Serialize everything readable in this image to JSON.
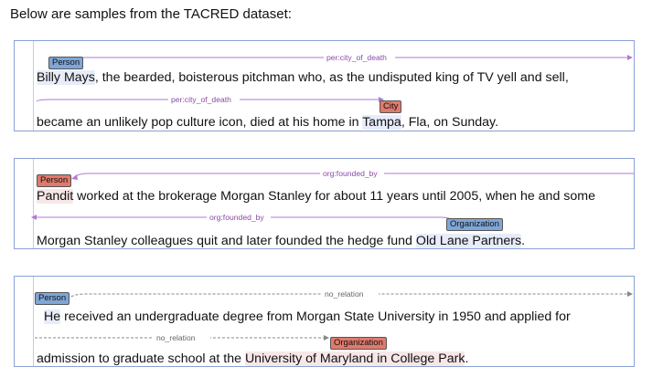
{
  "heading": "Below are samples from the TACRED dataset:",
  "colors": {
    "relation": "#b07ad6",
    "no_relation": "#888888",
    "person_tag": "#7fa6d6",
    "org_tag": "#df7a6d",
    "border": "#8aa0d8"
  },
  "examples": [
    {
      "line1": {
        "pre": "",
        "hl": "Billy Mays",
        "post": ", the bearded, boisterous pitchman who, as the undisputed king of TV yell and sell,"
      },
      "line2": {
        "pre": "became an unlikely pop culture icon, died at his home in ",
        "hl": "Tampa",
        "post": ", Fla, on Sunday."
      },
      "tag1": "Person",
      "tag2": "City",
      "rel_label": "per:city_of_death"
    },
    {
      "line1": {
        "pre": "",
        "hl": "Pandit",
        "post": " worked at the brokerage Morgan Stanley for about 11 years until 2005, when he and some"
      },
      "line2": {
        "pre": "Morgan Stanley colleagues quit and later founded the hedge fund ",
        "hl": "Old Lane Partners",
        "post": "."
      },
      "tag1": "Person",
      "tag2": "Organization",
      "rel_label": "org:founded_by"
    },
    {
      "line1": {
        "pre": "",
        "hl": "He",
        "post": "  received an undergraduate degree from Morgan State University in 1950 and applied for"
      },
      "line2": {
        "pre": "admission to graduate school at the ",
        "hl": "University of Maryland in College Park",
        "post": "."
      },
      "tag1": "Person",
      "tag2": "Organization",
      "rel_label": "no_relation"
    }
  ]
}
